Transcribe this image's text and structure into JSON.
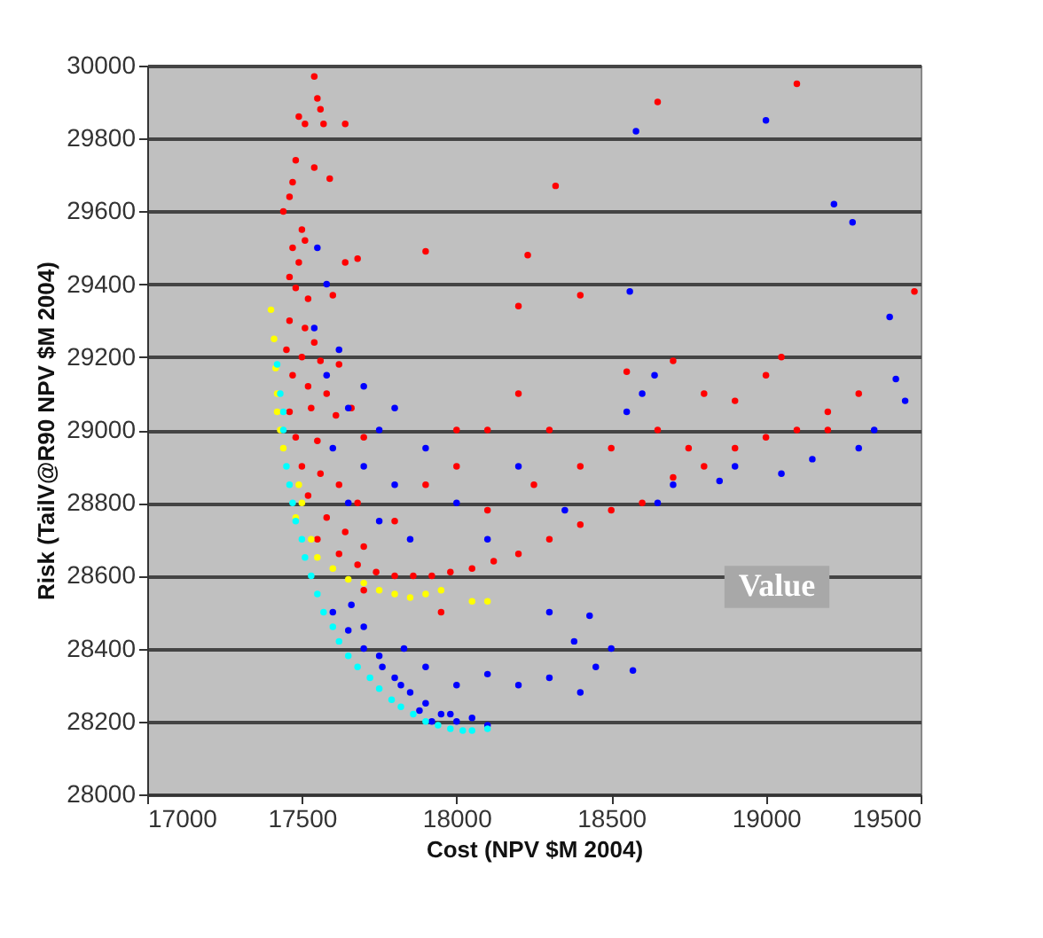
{
  "chart_data": {
    "type": "scatter",
    "xlabel": "Cost (NPV $M 2004)",
    "ylabel": "Risk (TailV@R90 NPV $M 2004)",
    "xlim": [
      17000,
      19500
    ],
    "xticks": [
      17000,
      17500,
      18000,
      18500,
      19000,
      19500
    ],
    "ylim": [
      28000,
      30000
    ],
    "yticks": [
      28000,
      28200,
      28400,
      28600,
      28800,
      29000,
      29200,
      29400,
      29600,
      29800,
      30000
    ],
    "grid": "y",
    "marker": "circle",
    "legend": false,
    "annotations": [
      "Value"
    ],
    "series": [
      {
        "color": "#ff0000",
        "x": [
          17540,
          17550,
          17560,
          17490,
          17510,
          17570,
          17640,
          17480,
          17540,
          17470,
          17590,
          17440,
          17460,
          17500,
          17470,
          17510,
          17490,
          17460,
          17480,
          17520,
          17600,
          17640,
          17680,
          17460,
          17510,
          17540,
          17450,
          17500,
          17560,
          17620,
          17470,
          17520,
          17580,
          17460,
          17530,
          17610,
          17660,
          17480,
          17550,
          17700,
          17500,
          17560,
          17620,
          17680,
          17520,
          17580,
          17640,
          17700,
          17550,
          17620,
          17680,
          17740,
          17800,
          17860,
          17920,
          17980,
          18050,
          18120,
          18200,
          18300,
          18400,
          18500,
          18600,
          18700,
          18800,
          18900,
          19000,
          19100,
          19200,
          19300,
          19480,
          19100,
          18650,
          18230,
          18320,
          17900,
          18400,
          18200,
          18700,
          18550,
          18800,
          18900,
          19000,
          19200,
          18100,
          18200,
          18300,
          18000,
          17900,
          18100,
          18250,
          18400,
          18500,
          18650,
          18750,
          17800,
          17700,
          17950,
          19050,
          18000
        ],
        "values": [
          29970,
          29910,
          29880,
          29860,
          29840,
          29840,
          29840,
          29740,
          29720,
          29680,
          29690,
          29600,
          29640,
          29550,
          29500,
          29520,
          29460,
          29420,
          29390,
          29360,
          29370,
          29460,
          29470,
          29300,
          29280,
          29240,
          29220,
          29200,
          29190,
          29180,
          29150,
          29120,
          29100,
          29050,
          29060,
          29040,
          29060,
          28980,
          28970,
          28980,
          28900,
          28880,
          28850,
          28800,
          28820,
          28760,
          28720,
          28680,
          28700,
          28660,
          28630,
          28610,
          28600,
          28600,
          28600,
          28610,
          28620,
          28640,
          28660,
          28700,
          28740,
          28780,
          28800,
          28870,
          28900,
          28950,
          28980,
          29000,
          29050,
          29100,
          29380,
          29950,
          29900,
          29480,
          29670,
          29490,
          29370,
          29340,
          29190,
          29160,
          29100,
          29080,
          29150,
          29000,
          29000,
          29100,
          29000,
          28900,
          28850,
          28780,
          28850,
          28900,
          28950,
          29000,
          28950,
          28750,
          28560,
          28500,
          29200,
          29000
        ]
      },
      {
        "color": "#0000ff",
        "x": [
          17550,
          17580,
          17540,
          17620,
          17580,
          17700,
          17650,
          17750,
          17600,
          17700,
          17800,
          17650,
          17750,
          17850,
          17600,
          17650,
          17700,
          17750,
          17800,
          17850,
          17900,
          17950,
          18000,
          17920,
          17980,
          18050,
          18100,
          17880,
          17820,
          17760,
          17700,
          17660,
          17830,
          17900,
          18000,
          18100,
          18200,
          18300,
          18400,
          18450,
          18380,
          18430,
          18500,
          18570,
          18300,
          18560,
          18580,
          19000,
          19220,
          19280,
          19400,
          19420,
          19450,
          19300,
          19150,
          19050,
          18900,
          18850,
          18700,
          18650,
          18600,
          18640,
          17800,
          17900,
          18000,
          18100,
          18200,
          18350,
          19350,
          18550
        ],
        "values": [
          29500,
          29400,
          29280,
          29220,
          29150,
          29120,
          29060,
          29000,
          28950,
          28900,
          28850,
          28800,
          28750,
          28700,
          28500,
          28450,
          28400,
          28380,
          28320,
          28280,
          28250,
          28220,
          28200,
          28200,
          28220,
          28210,
          28190,
          28230,
          28300,
          28350,
          28460,
          28520,
          28400,
          28350,
          28300,
          28330,
          28300,
          28320,
          28280,
          28350,
          28420,
          28490,
          28400,
          28340,
          28500,
          29380,
          29820,
          29850,
          29620,
          29570,
          29310,
          29140,
          29080,
          28950,
          28920,
          28880,
          28900,
          28860,
          28850,
          28800,
          29100,
          29150,
          29060,
          28950,
          28800,
          28700,
          28900,
          28780,
          29000,
          29050
        ]
      },
      {
        "color": "#ffff00",
        "x": [
          17400,
          17410,
          17415,
          17420,
          17430,
          17440,
          17490,
          17480,
          17530,
          17550,
          17600,
          17650,
          17700,
          17750,
          17800,
          17850,
          17900,
          17950,
          18050,
          18100,
          17420,
          17500
        ],
        "values": [
          29330,
          29250,
          29170,
          29100,
          29000,
          28950,
          28850,
          28760,
          28700,
          28650,
          28620,
          28590,
          28580,
          28560,
          28550,
          28540,
          28550,
          28560,
          28530,
          28530,
          29050,
          28800
        ]
      },
      {
        "color": "#00ffff",
        "x": [
          17420,
          17430,
          17440,
          17450,
          17470,
          17500,
          17530,
          17570,
          17620,
          17680,
          17750,
          17820,
          17900,
          17980,
          18050,
          18100,
          17440,
          17460,
          17480,
          17510,
          17550,
          17600,
          17650,
          17720,
          17790,
          17860,
          17940,
          18020
        ],
        "values": [
          29180,
          29100,
          29000,
          28900,
          28800,
          28700,
          28600,
          28500,
          28420,
          28350,
          28290,
          28240,
          28200,
          28180,
          28175,
          28180,
          29050,
          28850,
          28750,
          28650,
          28550,
          28460,
          28380,
          28320,
          28260,
          28220,
          28190,
          28175
        ]
      }
    ]
  }
}
